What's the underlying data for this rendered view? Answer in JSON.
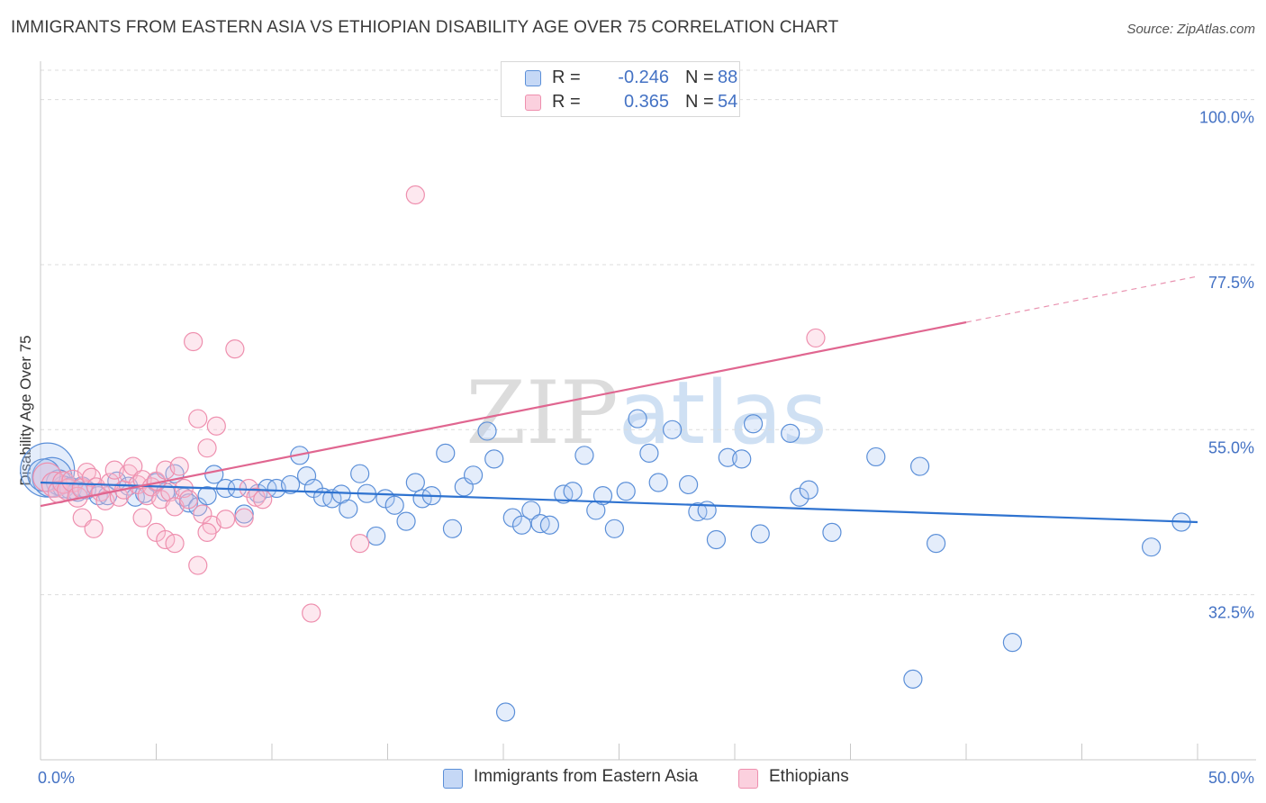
{
  "title": "IMMIGRANTS FROM EASTERN ASIA VS ETHIOPIAN DISABILITY AGE OVER 75 CORRELATION CHART",
  "source": "Source: ZipAtlas.com",
  "watermark": "ZIPatlas",
  "legend": {
    "series": [
      {
        "r_label": "R =",
        "r_value": "-0.246",
        "n_label": "N =",
        "n_value": "88"
      },
      {
        "r_label": "R =",
        "r_value": "0.365",
        "n_label": "N =",
        "n_value": "54"
      }
    ]
  },
  "chart_data": {
    "type": "scatter",
    "ylabel": "Disability Age Over 75",
    "xlim": [
      0,
      50
    ],
    "ylim": [
      10,
      104
    ],
    "x_tick_labels": [
      {
        "value": 0,
        "label": "0.0%"
      },
      {
        "value": 50,
        "label": "50.0%"
      }
    ],
    "y_tick_labels": [
      {
        "value": 100,
        "label": "100.0%"
      },
      {
        "value": 77.5,
        "label": "77.5%"
      },
      {
        "value": 55,
        "label": "55.0%"
      },
      {
        "value": 32.5,
        "label": "32.5%"
      }
    ],
    "gridlines": true,
    "legend_position": "bottom",
    "series": [
      {
        "name": "Immigrants from Eastern Asia",
        "color": "#5b8fd8",
        "trend_color": "#2f73d0",
        "trend": {
          "x": [
            0,
            50
          ],
          "y": [
            47.8,
            42.4
          ],
          "solid_until": 50
        },
        "points": [
          [
            0.3,
            49.5
          ],
          [
            0.5,
            48.5
          ],
          [
            0.8,
            47.8
          ],
          [
            1.0,
            47.2
          ],
          [
            1.3,
            47.0
          ],
          [
            1.6,
            46.6
          ],
          [
            1.8,
            47.2
          ],
          [
            2.0,
            46.8
          ],
          [
            2.5,
            46.0
          ],
          [
            2.9,
            46.0
          ],
          [
            3.3,
            48.0
          ],
          [
            3.8,
            47.3
          ],
          [
            4.1,
            45.8
          ],
          [
            4.5,
            46.3
          ],
          [
            5.0,
            47.8
          ],
          [
            5.4,
            46.5
          ],
          [
            5.8,
            49.0
          ],
          [
            6.2,
            45.8
          ],
          [
            6.4,
            45.0
          ],
          [
            6.8,
            44.5
          ],
          [
            7.2,
            46.0
          ],
          [
            7.5,
            48.9
          ],
          [
            8.0,
            47.0
          ],
          [
            8.5,
            47.0
          ],
          [
            8.8,
            43.5
          ],
          [
            9.4,
            46.3
          ],
          [
            9.8,
            47.0
          ],
          [
            10.2,
            47.0
          ],
          [
            10.8,
            47.5
          ],
          [
            11.2,
            51.5
          ],
          [
            11.5,
            48.7
          ],
          [
            11.8,
            47.0
          ],
          [
            12.2,
            45.8
          ],
          [
            12.6,
            45.6
          ],
          [
            13.0,
            46.2
          ],
          [
            13.3,
            44.2
          ],
          [
            13.8,
            49.0
          ],
          [
            14.1,
            46.3
          ],
          [
            14.5,
            40.5
          ],
          [
            14.9,
            45.6
          ],
          [
            15.3,
            44.7
          ],
          [
            15.8,
            42.5
          ],
          [
            16.2,
            47.8
          ],
          [
            16.5,
            45.6
          ],
          [
            16.9,
            46.0
          ],
          [
            17.5,
            51.8
          ],
          [
            17.8,
            41.5
          ],
          [
            18.3,
            47.2
          ],
          [
            18.7,
            48.8
          ],
          [
            19.3,
            54.8
          ],
          [
            19.6,
            51.0
          ],
          [
            20.1,
            16.5
          ],
          [
            20.4,
            43.0
          ],
          [
            20.8,
            42.0
          ],
          [
            21.2,
            44.0
          ],
          [
            21.6,
            42.2
          ],
          [
            22.0,
            42.0
          ],
          [
            22.6,
            46.2
          ],
          [
            23.0,
            46.6
          ],
          [
            23.5,
            51.5
          ],
          [
            24.0,
            44.0
          ],
          [
            24.3,
            46.0
          ],
          [
            24.8,
            41.5
          ],
          [
            25.3,
            46.6
          ],
          [
            25.8,
            56.5
          ],
          [
            26.3,
            51.8
          ],
          [
            26.7,
            47.8
          ],
          [
            27.3,
            55.0
          ],
          [
            28.0,
            47.5
          ],
          [
            28.4,
            43.8
          ],
          [
            28.8,
            44.0
          ],
          [
            29.2,
            40.0
          ],
          [
            29.7,
            51.2
          ],
          [
            30.3,
            51.0
          ],
          [
            30.8,
            55.8
          ],
          [
            31.1,
            40.8
          ],
          [
            32.4,
            54.5
          ],
          [
            32.8,
            45.8
          ],
          [
            33.2,
            46.8
          ],
          [
            34.2,
            41.0
          ],
          [
            36.1,
            51.3
          ],
          [
            37.7,
            21.0
          ],
          [
            38.0,
            50.0
          ],
          [
            38.7,
            39.5
          ],
          [
            42.0,
            26.0
          ],
          [
            48.0,
            39.0
          ],
          [
            49.3,
            42.4
          ],
          [
            0.15,
            48.8
          ]
        ],
        "sizes": [
          30,
          22,
          14,
          12,
          12,
          11,
          11,
          10,
          10,
          10,
          10,
          10,
          10,
          10,
          10,
          10,
          10,
          10,
          10,
          10,
          10,
          10,
          10,
          10,
          10,
          10,
          10,
          10,
          10,
          10,
          10,
          10,
          10,
          10,
          10,
          10,
          10,
          10,
          10,
          10,
          10,
          10,
          10,
          10,
          10,
          10,
          10,
          10,
          10,
          10,
          10,
          10,
          10,
          10,
          10,
          10,
          10,
          10,
          10,
          10,
          10,
          10,
          10,
          10,
          10,
          10,
          10,
          10,
          10,
          10,
          10,
          10,
          10,
          10,
          10,
          10,
          10,
          10,
          10,
          10,
          10,
          10,
          10,
          10,
          10,
          10,
          10,
          18
        ]
      },
      {
        "name": "Ethiopians",
        "color": "#ee8fae",
        "trend_color": "#e06690",
        "trend": {
          "x": [
            0,
            50
          ],
          "y": [
            44.6,
            75.9
          ],
          "solid_until": 40
        },
        "points": [
          [
            0.3,
            48.5
          ],
          [
            0.6,
            47.5
          ],
          [
            0.8,
            46.5
          ],
          [
            1.0,
            47.8
          ],
          [
            1.2,
            46.8
          ],
          [
            1.4,
            48.0
          ],
          [
            1.6,
            45.8
          ],
          [
            1.8,
            47.0
          ],
          [
            2.0,
            49.2
          ],
          [
            2.2,
            48.5
          ],
          [
            2.4,
            47.2
          ],
          [
            2.6,
            46.5
          ],
          [
            2.8,
            45.3
          ],
          [
            3.0,
            47.8
          ],
          [
            3.2,
            49.5
          ],
          [
            3.4,
            45.8
          ],
          [
            3.6,
            46.8
          ],
          [
            3.8,
            49.0
          ],
          [
            4.0,
            50.0
          ],
          [
            4.2,
            47.5
          ],
          [
            4.4,
            48.2
          ],
          [
            4.6,
            46.0
          ],
          [
            4.8,
            47.2
          ],
          [
            5.0,
            48.0
          ],
          [
            5.2,
            45.5
          ],
          [
            5.4,
            49.5
          ],
          [
            5.6,
            46.5
          ],
          [
            5.8,
            44.5
          ],
          [
            6.0,
            50.0
          ],
          [
            6.2,
            47.0
          ],
          [
            6.4,
            45.5
          ],
          [
            6.6,
            67.0
          ],
          [
            6.8,
            56.5
          ],
          [
            7.0,
            43.5
          ],
          [
            7.2,
            52.5
          ],
          [
            7.4,
            42.0
          ],
          [
            7.6,
            55.5
          ],
          [
            8.0,
            42.8
          ],
          [
            8.4,
            66.0
          ],
          [
            8.8,
            43.0
          ],
          [
            9.0,
            47.0
          ],
          [
            9.3,
            45.8
          ],
          [
            9.6,
            45.5
          ],
          [
            1.8,
            43.0
          ],
          [
            2.3,
            41.5
          ],
          [
            4.4,
            43.0
          ],
          [
            5.0,
            41.0
          ],
          [
            5.4,
            40.0
          ],
          [
            5.8,
            39.5
          ],
          [
            6.8,
            36.5
          ],
          [
            7.2,
            41.0
          ],
          [
            11.7,
            30.0
          ],
          [
            13.8,
            39.5
          ],
          [
            16.2,
            87.0
          ],
          [
            33.5,
            67.5
          ]
        ],
        "sizes": [
          16,
          14,
          12,
          12,
          12,
          12,
          11,
          11,
          10,
          10,
          10,
          10,
          10,
          10,
          10,
          10,
          10,
          10,
          10,
          10,
          10,
          10,
          10,
          10,
          10,
          10,
          10,
          10,
          10,
          10,
          10,
          10,
          10,
          10,
          10,
          10,
          10,
          10,
          10,
          10,
          10,
          10,
          10,
          10,
          10,
          10,
          10,
          10,
          10,
          10,
          10,
          10,
          10,
          10,
          10
        ]
      }
    ]
  }
}
